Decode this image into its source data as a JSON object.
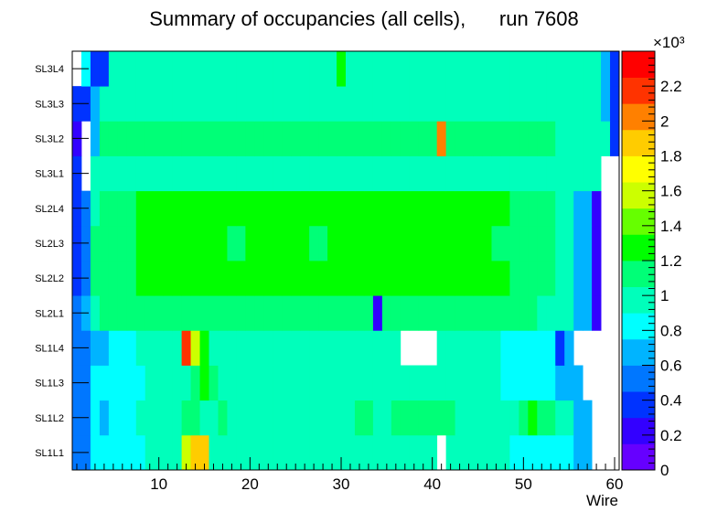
{
  "chart_data": {
    "type": "heatmap",
    "title": "Summary of occupancies (all cells),      run 7608",
    "xlabel": "Wire",
    "ylabel": "",
    "xlim": [
      0.5,
      60.5
    ],
    "x_ticks": [
      10,
      20,
      30,
      40,
      50,
      60
    ],
    "y_categories": [
      "SL1L1",
      "SL1L2",
      "SL1L3",
      "SL1L4",
      "SL2L1",
      "SL2L2",
      "SL2L3",
      "SL2L4",
      "SL3L1",
      "SL3L2",
      "SL3L3",
      "SL3L4"
    ],
    "z_range": [
      0,
      2400
    ],
    "z_exponent_label": "×10³",
    "z_ticks": [
      0,
      200,
      400,
      600,
      800,
      1000,
      1200,
      1400,
      1600,
      1800,
      2000,
      2200
    ],
    "z_tick_labels": [
      "0",
      "0.2",
      "0.4",
      "0.6",
      "0.8",
      "1",
      "1.2",
      "1.4",
      "1.6",
      "1.8",
      "2",
      "2.2"
    ],
    "rows": {
      "SL1L1": [
        480,
        520,
        780,
        780,
        780,
        780,
        780,
        780,
        900,
        900,
        900,
        900,
        1500,
        1800,
        1800,
        1000,
        1000,
        980,
        980,
        960,
        960,
        960,
        960,
        960,
        960,
        900,
        900,
        900,
        900,
        900,
        900,
        900,
        900,
        950,
        950,
        950,
        950,
        950,
        950,
        950,
        null,
        950,
        950,
        950,
        950,
        950,
        960,
        960,
        800,
        800,
        800,
        800,
        800,
        800,
        800,
        650,
        650,
        null,
        null,
        null
      ],
      "SL1L2": [
        450,
        550,
        750,
        720,
        780,
        780,
        800,
        900,
        900,
        900,
        900,
        900,
        1050,
        1100,
        1000,
        1000,
        1050,
        1000,
        950,
        950,
        950,
        950,
        950,
        950,
        950,
        950,
        950,
        950,
        950,
        1000,
        1000,
        1050,
        1050,
        950,
        950,
        1050,
        1050,
        1050,
        1050,
        1050,
        1050,
        1050,
        950,
        950,
        950,
        950,
        950,
        950,
        950,
        1100,
        1300,
        1050,
        1050,
        950,
        950,
        650,
        650,
        null,
        null,
        null
      ],
      "SL1L3": [
        450,
        580,
        820,
        820,
        850,
        850,
        850,
        850,
        900,
        900,
        900,
        900,
        1000,
        1100,
        1300,
        1100,
        900,
        900,
        900,
        900,
        900,
        900,
        950,
        950,
        950,
        950,
        950,
        950,
        950,
        950,
        950,
        950,
        950,
        950,
        950,
        950,
        950,
        950,
        950,
        950,
        950,
        950,
        950,
        950,
        950,
        950,
        950,
        850,
        850,
        850,
        850,
        850,
        850,
        720,
        640,
        640,
        null,
        null,
        null,
        null
      ],
      "SL1L4": [
        450,
        580,
        620,
        700,
        800,
        850,
        850,
        950,
        950,
        950,
        950,
        950,
        2200,
        1600,
        1300,
        1000,
        950,
        950,
        950,
        950,
        950,
        950,
        950,
        950,
        950,
        950,
        1000,
        1000,
        950,
        950,
        950,
        950,
        950,
        950,
        950,
        950,
        null,
        null,
        null,
        null,
        950,
        950,
        950,
        950,
        950,
        950,
        950,
        850,
        850,
        850,
        850,
        850,
        850,
        300,
        650,
        null,
        null,
        null,
        null,
        null
      ],
      "SL2L1": [
        580,
        640,
        1000,
        1050,
        1050,
        1050,
        1100,
        1150,
        1150,
        1150,
        1150,
        1150,
        1150,
        1150,
        1100,
        1100,
        1100,
        1100,
        1100,
        1050,
        1050,
        1050,
        1100,
        1100,
        1150,
        1100,
        1050,
        1050,
        1050,
        1050,
        1150,
        1150,
        1150,
        200,
        1100,
        1100,
        1100,
        1100,
        1100,
        1100,
        1100,
        1100,
        1100,
        1100,
        1100,
        1100,
        1100,
        1100,
        1100,
        1050,
        1050,
        1000,
        1000,
        950,
        950,
        650,
        650,
        250,
        null,
        null
      ],
      "SL2L2": [
        400,
        550,
        1100,
        1100,
        1100,
        1150,
        1150,
        1200,
        1200,
        1200,
        1200,
        1200,
        1200,
        1200,
        1200,
        1200,
        1200,
        1200,
        1200,
        1200,
        1200,
        1200,
        1200,
        1200,
        1200,
        1250,
        1200,
        1200,
        1200,
        1200,
        1200,
        1200,
        1200,
        1200,
        1200,
        1200,
        1200,
        1200,
        1200,
        1200,
        1200,
        1200,
        1200,
        1200,
        1200,
        1200,
        1200,
        1200,
        1100,
        1100,
        1100,
        1100,
        1050,
        950,
        950,
        650,
        650,
        250,
        null,
        null
      ],
      "SL2L3": [
        350,
        550,
        1100,
        1150,
        1150,
        1150,
        1150,
        1200,
        1200,
        1200,
        1200,
        1200,
        1200,
        1200,
        1200,
        1200,
        1200,
        1150,
        1150,
        1200,
        1200,
        1200,
        1200,
        1200,
        1200,
        1200,
        1150,
        1150,
        1200,
        1200,
        1200,
        1200,
        1200,
        1200,
        1200,
        1200,
        1200,
        1200,
        1200,
        1200,
        1200,
        1200,
        1200,
        1200,
        1200,
        1200,
        1150,
        1150,
        1100,
        1100,
        1100,
        1100,
        1050,
        950,
        950,
        650,
        650,
        250,
        null,
        null
      ],
      "SL2L4": [
        350,
        550,
        1000,
        1100,
        1150,
        1150,
        1150,
        1200,
        1200,
        1200,
        1200,
        1200,
        1250,
        1250,
        1200,
        1200,
        1200,
        1200,
        1200,
        1200,
        1200,
        1200,
        1200,
        1200,
        1200,
        1200,
        1250,
        1250,
        1200,
        1200,
        1200,
        1200,
        1200,
        1200,
        1200,
        1200,
        1200,
        1200,
        1200,
        1200,
        1200,
        1200,
        1200,
        1200,
        1200,
        1200,
        1200,
        1200,
        1150,
        1150,
        1100,
        1100,
        1050,
        950,
        950,
        650,
        650,
        250,
        null,
        null
      ],
      "SL3L1": [
        350,
        null,
        900,
        950,
        950,
        950,
        1000,
        1000,
        1000,
        1000,
        1000,
        1000,
        1000,
        1000,
        1000,
        1000,
        1000,
        1000,
        1000,
        1000,
        1000,
        1000,
        1000,
        1000,
        1000,
        1000,
        1000,
        1000,
        1000,
        1000,
        1000,
        1000,
        1000,
        1000,
        1000,
        1000,
        1000,
        1000,
        1000,
        1000,
        1000,
        1000,
        1000,
        1000,
        1000,
        1000,
        1000,
        1000,
        1000,
        1000,
        1000,
        1000,
        1000,
        1000,
        1000,
        900,
        900,
        900,
        null,
        null
      ],
      "SL3L2": [
        200,
        null,
        700,
        1050,
        1100,
        1100,
        1100,
        1100,
        1150,
        1150,
        1100,
        1100,
        1150,
        1150,
        1100,
        1100,
        1150,
        1100,
        1100,
        1100,
        1100,
        1100,
        1050,
        1050,
        1050,
        1050,
        1050,
        1050,
        1050,
        1050,
        1050,
        1050,
        1050,
        1050,
        1050,
        1050,
        1050,
        1100,
        1100,
        1150,
        2000,
        1100,
        1050,
        1050,
        1050,
        1050,
        1050,
        1050,
        1050,
        1050,
        1050,
        1050,
        1050,
        950,
        950,
        950,
        950,
        950,
        950,
        300
      ],
      "SL3L3": [
        300,
        350,
        600,
        900,
        950,
        950,
        1000,
        1000,
        1000,
        1000,
        1000,
        1000,
        1000,
        1000,
        1000,
        1000,
        1000,
        1000,
        1000,
        1000,
        1000,
        1000,
        1000,
        1000,
        1000,
        1000,
        1000,
        1000,
        1000,
        1000,
        1000,
        1000,
        1000,
        1000,
        1000,
        1000,
        1000,
        1000,
        1000,
        1000,
        1000,
        1000,
        1000,
        1000,
        1000,
        1000,
        1000,
        1000,
        1000,
        1000,
        1000,
        1000,
        1000,
        1000,
        1000,
        1000,
        1000,
        1000,
        600,
        300
      ],
      "SL3L4": [
        null,
        800,
        350,
        400,
        950,
        950,
        1000,
        1000,
        1000,
        1000,
        1000,
        1000,
        1000,
        1000,
        1000,
        1000,
        1000,
        1000,
        1000,
        1000,
        1000,
        1000,
        1000,
        1000,
        1000,
        1000,
        1000,
        1000,
        1000,
        1200,
        1000,
        1000,
        1000,
        1000,
        1000,
        1000,
        1000,
        1000,
        1000,
        1000,
        1000,
        1000,
        1000,
        1000,
        1000,
        1000,
        1000,
        1000,
        1000,
        1000,
        1000,
        1000,
        1000,
        1000,
        1000,
        1000,
        1000,
        900,
        700,
        300
      ]
    }
  }
}
